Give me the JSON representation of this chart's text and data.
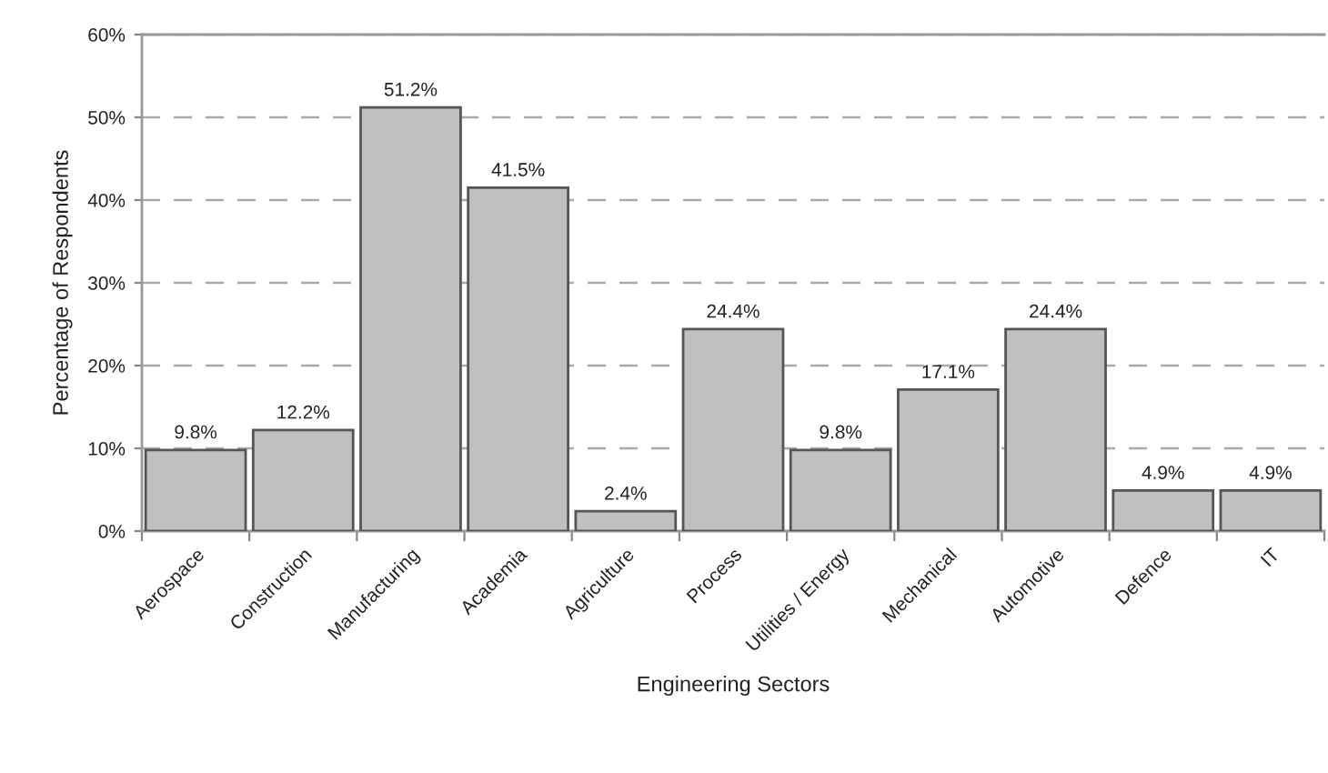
{
  "chart_data": {
    "type": "bar",
    "xlabel": "Engineering Sectors",
    "ylabel": "Percentage of Respondents",
    "categories": [
      "Aerospace",
      "Construction",
      "Manufacturing",
      "Academia",
      "Agriculture",
      "Process",
      "Utilities / Energy",
      "Mechanical",
      "Automotive",
      "Defence",
      "IT"
    ],
    "values": [
      9.8,
      12.2,
      51.2,
      41.5,
      2.4,
      24.4,
      9.8,
      17.1,
      24.4,
      4.9,
      4.9
    ],
    "value_labels": [
      "9.8%",
      "12.2%",
      "51.2%",
      "41.5%",
      "2.4%",
      "24.4%",
      "9.8%",
      "17.1%",
      "24.4%",
      "4.9%",
      "4.9%"
    ],
    "color": "#c0c0c0",
    "ylim": [
      0,
      60
    ],
    "yticks": [
      {
        "value": 0,
        "label": "0%"
      },
      {
        "value": 10,
        "label": "10%"
      },
      {
        "value": 20,
        "label": "20%"
      },
      {
        "value": 30,
        "label": "30%"
      },
      {
        "value": 40,
        "label": "40%"
      },
      {
        "value": 50,
        "label": "50%"
      },
      {
        "value": 60,
        "label": "60%"
      }
    ],
    "grid": "y",
    "legend": false
  }
}
